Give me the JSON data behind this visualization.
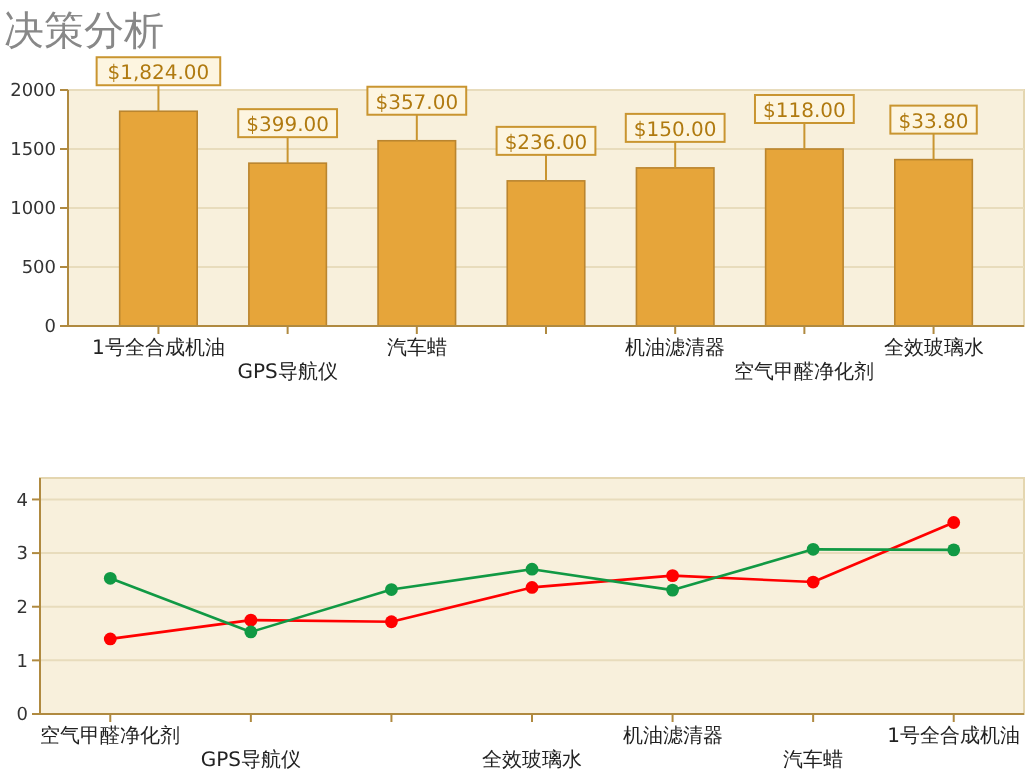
{
  "chart_data": [
    {
      "type": "bar",
      "title": "决策分析",
      "categories": [
        "1号全合成机油",
        "GPS导航仪",
        "汽车蜡",
        null,
        "机油滤清器",
        "空气甲醛净化剂",
        "全效玻璃水"
      ],
      "values": [
        1820,
        1380,
        1570,
        1230,
        1340,
        1500,
        1410
      ],
      "annotations": [
        {
          "text": "$1,824.00",
          "y": 1820
        },
        {
          "text": "$399.00",
          "y": 1380
        },
        {
          "text": "$357.00",
          "y": 1570
        },
        {
          "text": "$236.00",
          "y": 1230
        },
        {
          "text": "$150.00",
          "y": 1340
        },
        {
          "text": "$118.00",
          "y": 1500
        },
        {
          "text": "$33.80",
          "y": 1410
        }
      ],
      "color": "#e6a53a",
      "ylim": [
        0,
        2000
      ],
      "yticks": [
        0,
        500,
        1000,
        1500,
        2000
      ],
      "grid": "y"
    },
    {
      "type": "line",
      "categories": [
        "空气甲醛净化剂",
        "GPS导航仪",
        null,
        "全效玻璃水",
        "机油滤清器",
        "汽车蜡",
        "1号全合成机油"
      ],
      "series": [
        {
          "color": "#ff0000",
          "values": [
            1.4,
            1.75,
            1.72,
            2.36,
            2.58,
            2.46,
            3.57
          ]
        },
        {
          "color": "#119944",
          "values": [
            2.53,
            1.53,
            2.32,
            2.7,
            2.31,
            3.07,
            3.06
          ]
        }
      ],
      "ylim": [
        0,
        4.4
      ],
      "yticks": [
        0,
        1,
        2,
        3,
        4
      ],
      "grid": "y",
      "marker": "circle",
      "line_style": "solid"
    }
  ]
}
